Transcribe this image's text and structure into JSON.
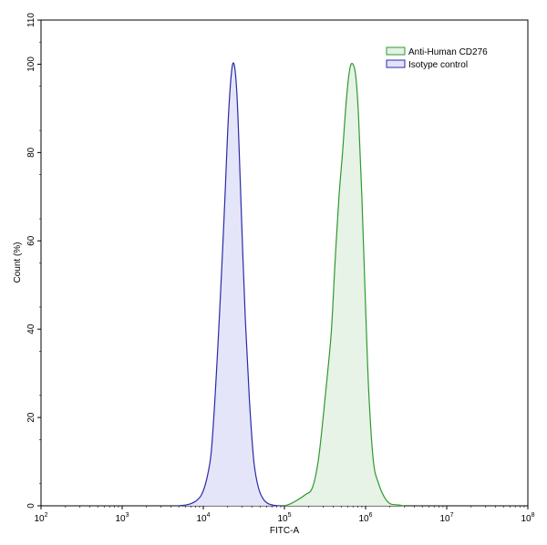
{
  "chart_data": {
    "type": "area",
    "xlabel": "FITC-A",
    "ylabel": "Count  (%)",
    "xscale": "log",
    "xlim": [
      100,
      100000000
    ],
    "ylim": [
      0,
      110
    ],
    "x_ticks": [
      {
        "value": 100,
        "base": "10",
        "exp": "2"
      },
      {
        "value": 1000,
        "base": "10",
        "exp": "3"
      },
      {
        "value": 10000,
        "base": "10",
        "exp": "4"
      },
      {
        "value": 100000,
        "base": "10",
        "exp": "5"
      },
      {
        "value": 1000000,
        "base": "10",
        "exp": "6"
      },
      {
        "value": 10000000,
        "base": "10",
        "exp": "7"
      },
      {
        "value": 100000000,
        "base": "10",
        "exp": "8"
      }
    ],
    "y_ticks": [
      0,
      20,
      40,
      60,
      80,
      100,
      110
    ],
    "grid": false,
    "legend_position": "top-right",
    "series": [
      {
        "name": "Anti-Human CD276",
        "line_color": "#2e9a2e",
        "fill_color": "#e3f2e3",
        "x": [
          100000,
          120000,
          150000,
          180000,
          220000,
          260000,
          300000,
          340000,
          380000,
          420000,
          470000,
          520000,
          580000,
          640000,
          700000,
          760000,
          820000,
          900000,
          1000000,
          1100000,
          1250000,
          1450000,
          1700000,
          2000000,
          2500000,
          3000000
        ],
        "y": [
          0,
          0.5,
          1.5,
          2.5,
          4,
          10,
          20,
          30,
          40,
          55,
          70,
          80,
          92,
          99,
          100,
          97,
          88,
          70,
          45,
          25,
          10,
          5,
          2,
          0.5,
          0.2,
          0
        ]
      },
      {
        "name": "Isotype control",
        "line_color": "#2a2aa8",
        "fill_color": "#e2e2fa",
        "x": [
          5000,
          6500,
          8000,
          9500,
          11000,
          12500,
          14000,
          15500,
          17000,
          18500,
          20000,
          21500,
          23000,
          24500,
          26000,
          27500,
          30000,
          33000,
          37000,
          42000,
          48000,
          55000,
          63000,
          75000,
          90000
        ],
        "y": [
          0,
          0.3,
          1,
          2.5,
          6,
          12,
          25,
          40,
          55,
          70,
          85,
          95,
          100,
          99,
          93,
          82,
          62,
          42,
          24,
          10,
          4,
          1.5,
          0.5,
          0.1,
          0
        ]
      }
    ]
  }
}
